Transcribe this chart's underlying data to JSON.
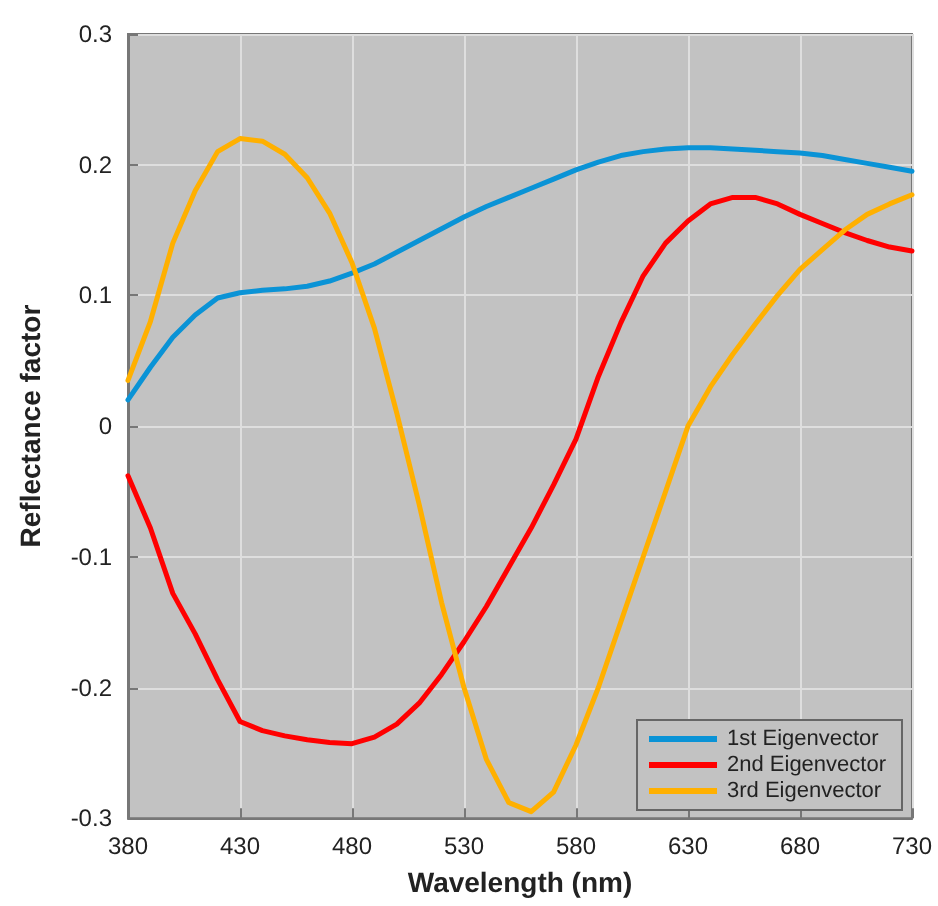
{
  "chart_data": {
    "type": "line",
    "xlabel": "Wavelength (nm)",
    "ylabel": "Reflectance factor",
    "x": [
      380,
      390,
      400,
      410,
      420,
      430,
      440,
      450,
      460,
      470,
      480,
      490,
      500,
      510,
      520,
      530,
      540,
      550,
      560,
      570,
      580,
      590,
      600,
      610,
      620,
      630,
      640,
      650,
      660,
      670,
      680,
      690,
      700,
      710,
      720,
      730
    ],
    "series": [
      {
        "name": "1st Eigenvector",
        "color": "#0a93d6",
        "values": [
          0.02,
          0.045,
          0.068,
          0.085,
          0.098,
          0.102,
          0.104,
          0.105,
          0.107,
          0.111,
          0.117,
          0.124,
          0.133,
          0.142,
          0.151,
          0.16,
          0.168,
          0.175,
          0.182,
          0.189,
          0.196,
          0.202,
          0.207,
          0.21,
          0.212,
          0.213,
          0.213,
          0.212,
          0.211,
          0.21,
          0.209,
          0.207,
          0.204,
          0.201,
          0.198,
          0.195
        ]
      },
      {
        "name": "2nd Eigenvector",
        "color": "#ff0000",
        "values": [
          -0.038,
          -0.078,
          -0.128,
          -0.159,
          -0.194,
          -0.226,
          -0.233,
          -0.237,
          -0.24,
          -0.242,
          -0.243,
          -0.238,
          -0.228,
          -0.212,
          -0.19,
          -0.165,
          -0.138,
          -0.108,
          -0.078,
          -0.045,
          -0.01,
          0.038,
          0.079,
          0.115,
          0.14,
          0.157,
          0.17,
          0.175,
          0.175,
          0.17,
          0.162,
          0.155,
          0.148,
          0.142,
          0.137,
          0.134
        ]
      },
      {
        "name": "3rd Eigenvector",
        "color": "#ffb000",
        "values": [
          0.035,
          0.08,
          0.14,
          0.18,
          0.21,
          0.22,
          0.218,
          0.208,
          0.19,
          0.163,
          0.125,
          0.075,
          0.01,
          -0.06,
          -0.135,
          -0.2,
          -0.255,
          -0.288,
          -0.295,
          -0.28,
          -0.244,
          -0.2,
          -0.15,
          -0.1,
          -0.05,
          0.0,
          0.03,
          0.055,
          0.078,
          0.1,
          0.12,
          0.135,
          0.15,
          0.162,
          0.17,
          0.177
        ]
      }
    ],
    "xlim": [
      380,
      730
    ],
    "xticks": [
      380,
      430,
      480,
      530,
      580,
      630,
      680,
      730
    ],
    "ylim": [
      -0.3,
      0.3
    ],
    "yticks": [
      -0.3,
      -0.2,
      -0.1,
      0,
      0.1,
      0.2,
      0.3
    ],
    "grid": true,
    "legend": "bottom right",
    "marker": "none",
    "line_style": "solid"
  }
}
